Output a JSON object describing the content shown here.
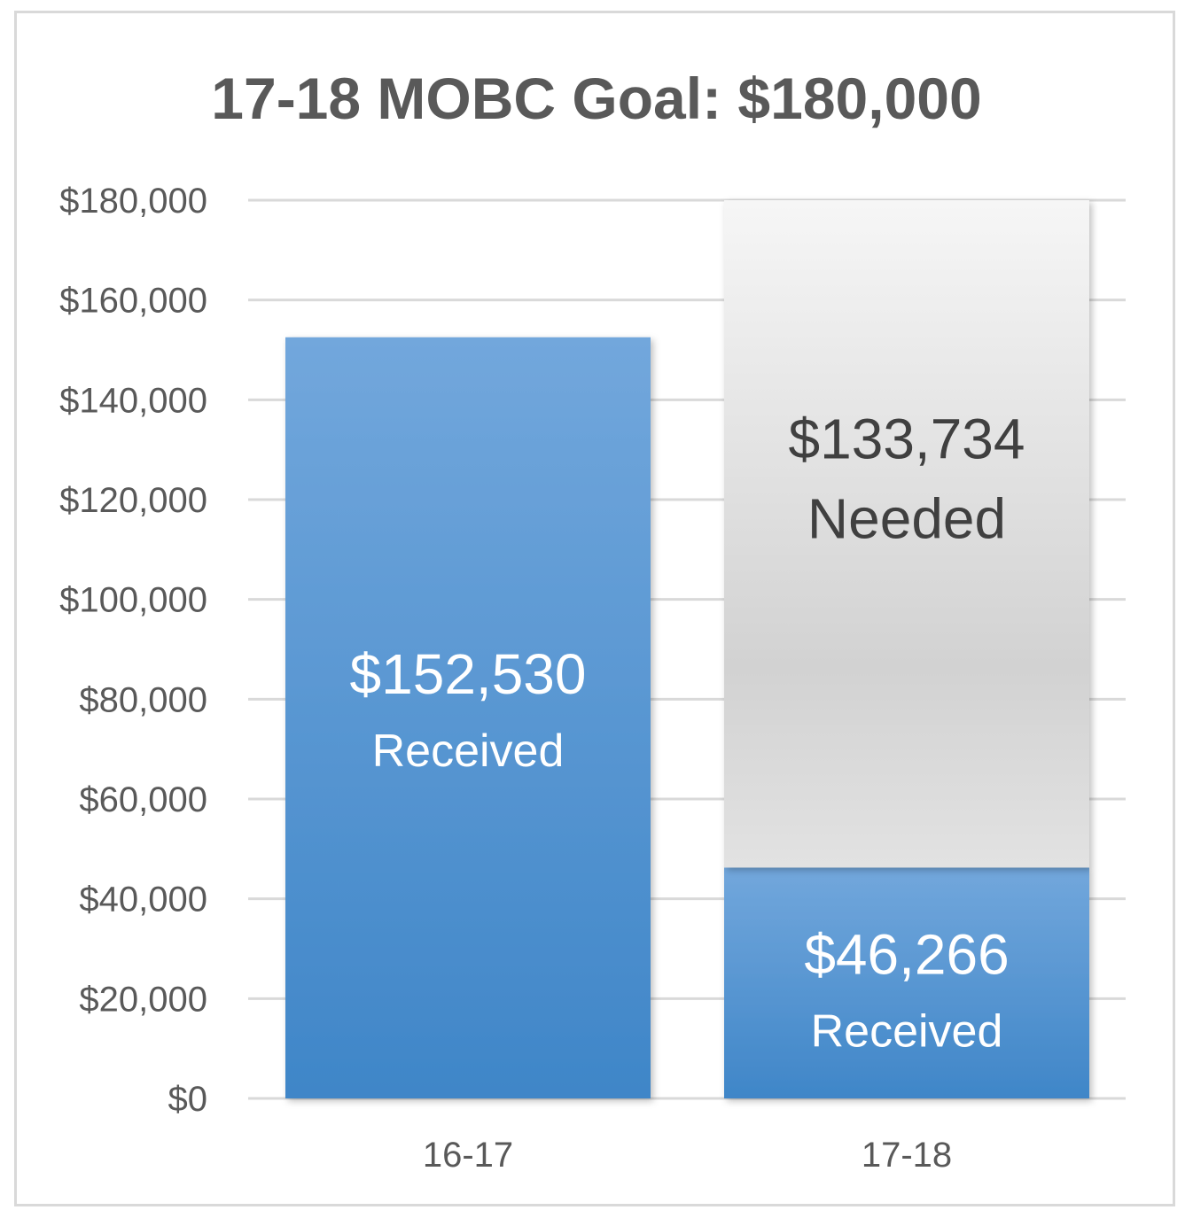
{
  "chart_data": {
    "type": "bar",
    "title": "17-18 MOBC Goal: $180,000",
    "xlabel": "",
    "ylabel": "",
    "ylim": [
      0,
      180000
    ],
    "ytick_values": [
      0,
      20000,
      40000,
      60000,
      80000,
      100000,
      120000,
      140000,
      160000,
      180000
    ],
    "ytick_labels": [
      "$0",
      "$20,000",
      "$40,000",
      "$60,000",
      "$80,000",
      "$100,000",
      "$120,000",
      "$140,000",
      "$160,000",
      "$180,000"
    ],
    "categories": [
      "16-17",
      "17-18"
    ],
    "stacked": true,
    "grid": true,
    "series": [
      {
        "key": "received",
        "values": [
          152530,
          46266
        ],
        "color": "#4a8fd2"
      },
      {
        "key": "needed",
        "values": [
          0,
          133734
        ],
        "color": "#dcdcdc"
      }
    ],
    "data_labels": [
      {
        "category": "16-17",
        "amount": "$152,530",
        "caption": "Received"
      },
      {
        "category": "17-18",
        "amount": "$46,266",
        "caption": "Received"
      },
      {
        "category": "17-18",
        "amount": "$133,734",
        "caption": "Needed"
      }
    ]
  },
  "colors": {
    "received_top": "#72a7dc",
    "received_bottom": "#3f86c8",
    "needed_top": "#f6f6f6",
    "needed_mid": "#d2d2d2",
    "needed_bottom": "#e2e2e2",
    "gridline": "#d9d9d9",
    "title": "#595959",
    "axis_text": "#595959",
    "label_on_blue": "#ffffff",
    "label_on_gray": "#404040"
  }
}
